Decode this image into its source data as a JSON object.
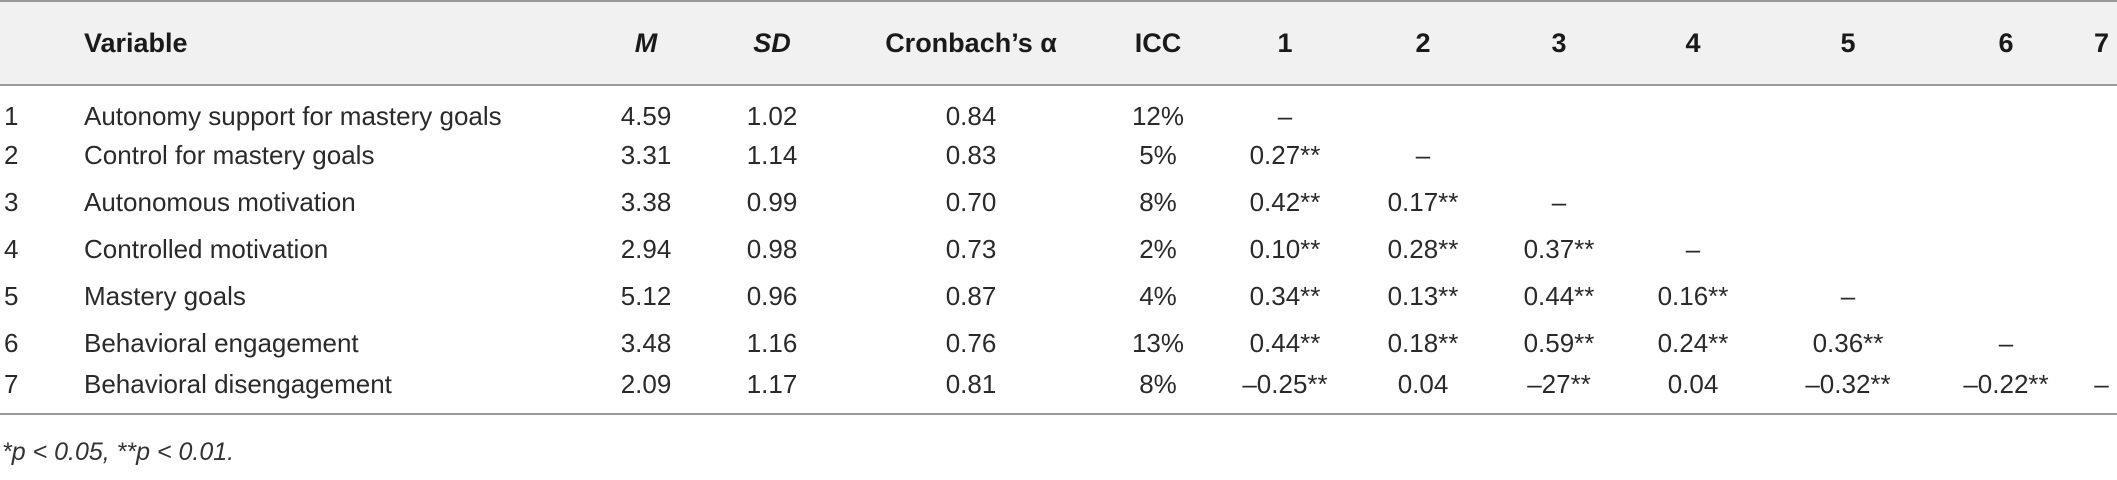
{
  "table": {
    "headers": {
      "index": "",
      "variable": "Variable",
      "m": "M",
      "sd": "SD",
      "alpha": "Cronbach’s α",
      "icc": "ICC",
      "c1": "1",
      "c2": "2",
      "c3": "3",
      "c4": "4",
      "c5": "5",
      "c6": "6",
      "c7": "7"
    },
    "rows": [
      {
        "index": "1",
        "variable": "Autonomy support for mastery goals",
        "m": "4.59",
        "sd": "1.02",
        "alpha": "0.84",
        "icc": "12%",
        "c1": "–",
        "c2": "",
        "c3": "",
        "c4": "",
        "c5": "",
        "c6": "",
        "c7": ""
      },
      {
        "index": "2",
        "variable": "Control for mastery goals",
        "m": "3.31",
        "sd": "1.14",
        "alpha": "0.83",
        "icc": "5%",
        "c1": "0.27**",
        "c2": "–",
        "c3": "",
        "c4": "",
        "c5": "",
        "c6": "",
        "c7": ""
      },
      {
        "index": "3",
        "variable": "Autonomous motivation",
        "m": "3.38",
        "sd": "0.99",
        "alpha": "0.70",
        "icc": "8%",
        "c1": "0.42**",
        "c2": "0.17**",
        "c3": "–",
        "c4": "",
        "c5": "",
        "c6": "",
        "c7": ""
      },
      {
        "index": "4",
        "variable": "Controlled motivation",
        "m": "2.94",
        "sd": "0.98",
        "alpha": "0.73",
        "icc": "2%",
        "c1": "0.10**",
        "c2": "0.28**",
        "c3": "0.37**",
        "c4": "–",
        "c5": "",
        "c6": "",
        "c7": ""
      },
      {
        "index": "5",
        "variable": "Mastery goals",
        "m": "5.12",
        "sd": "0.96",
        "alpha": "0.87",
        "icc": "4%",
        "c1": "0.34**",
        "c2": "0.13**",
        "c3": "0.44**",
        "c4": "0.16**",
        "c5": "–",
        "c6": "",
        "c7": ""
      },
      {
        "index": "6",
        "variable": "Behavioral engagement",
        "m": "3.48",
        "sd": "1.16",
        "alpha": "0.76",
        "icc": "13%",
        "c1": "0.44**",
        "c2": "0.18**",
        "c3": "0.59**",
        "c4": "0.24**",
        "c5": "0.36**",
        "c6": "–",
        "c7": ""
      },
      {
        "index": "7",
        "variable": "Behavioral disengagement",
        "m": "2.09",
        "sd": "1.17",
        "alpha": "0.81",
        "icc": "8%",
        "c1": "–0.25**",
        "c2": "0.04",
        "c3": "–27**",
        "c4": "0.04",
        "c5": "–0.32**",
        "c6": "–0.22**",
        "c7": "–"
      }
    ]
  },
  "footnote": "*p < 0.05, **p < 0.01."
}
